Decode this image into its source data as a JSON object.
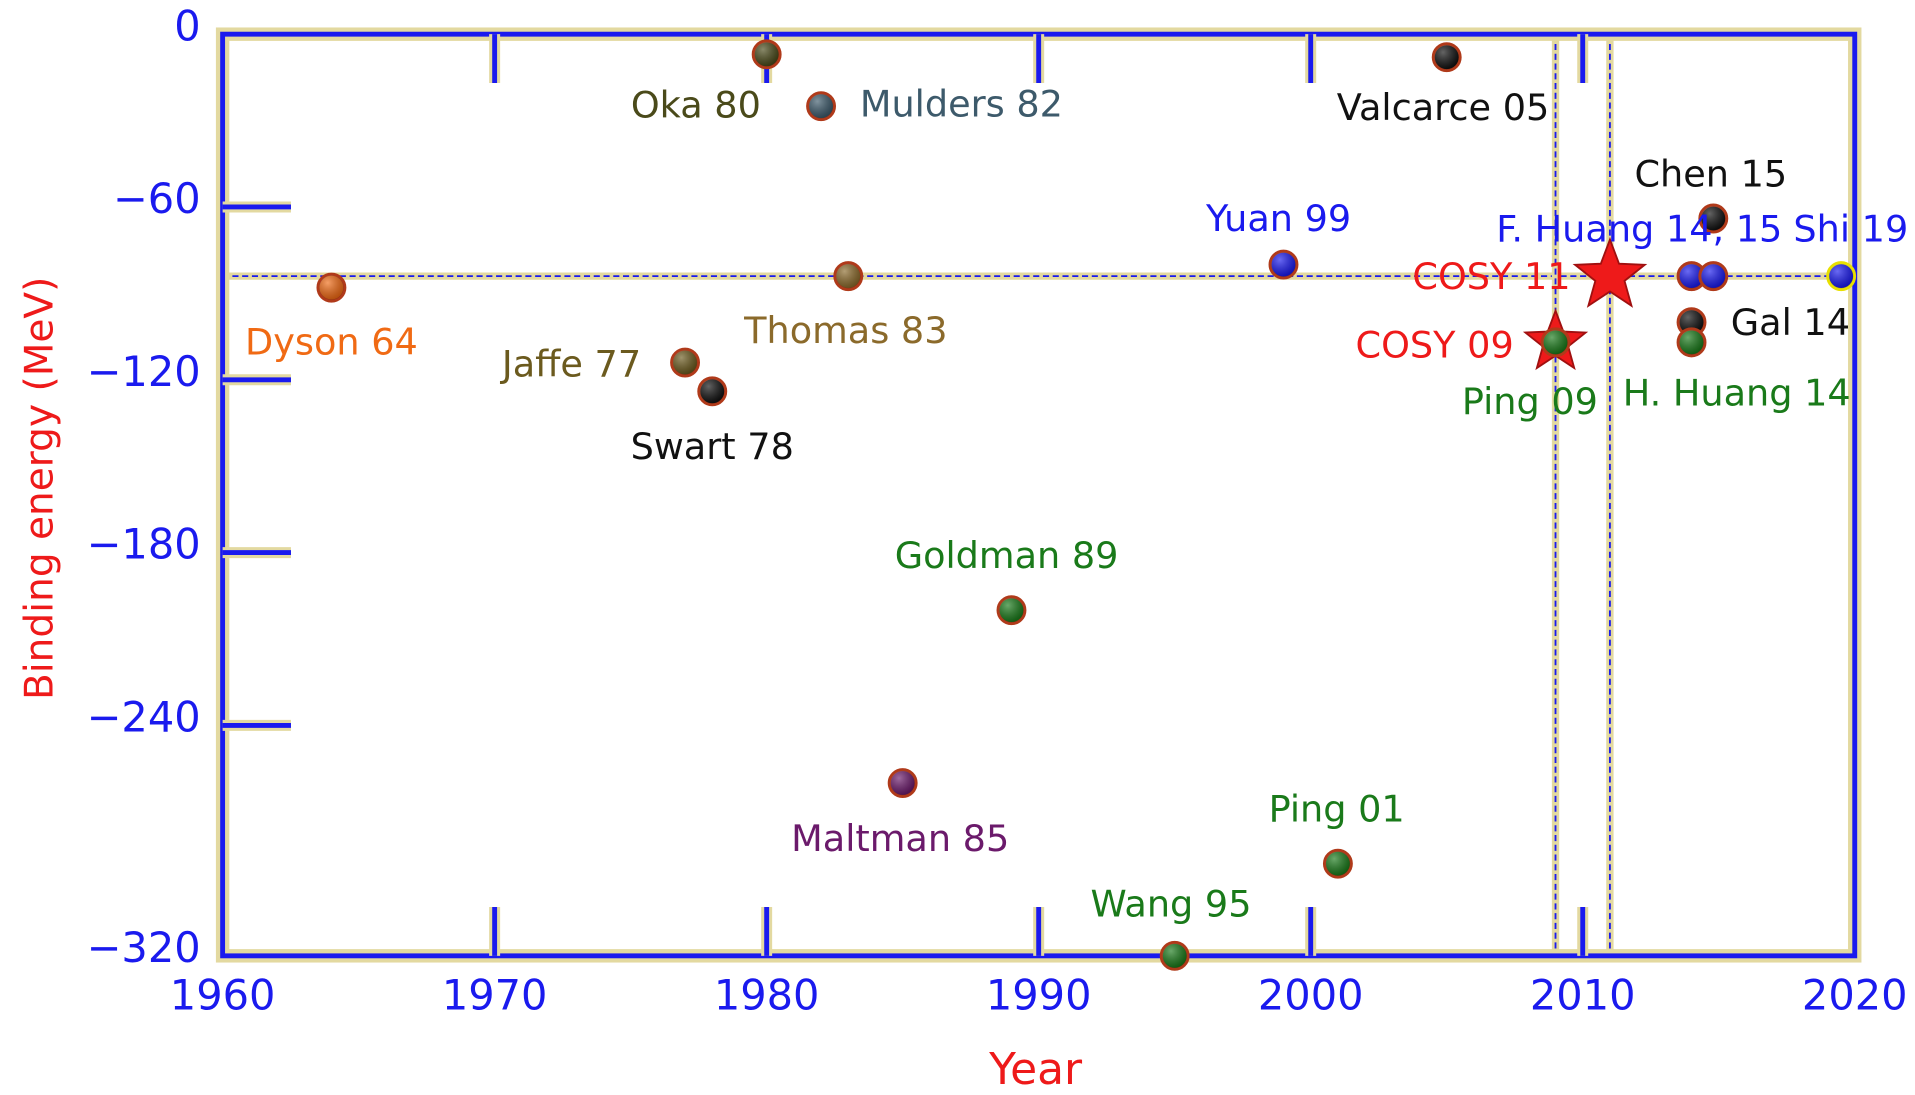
{
  "chart_data": {
    "type": "scatter",
    "xlabel": "Year",
    "ylabel": "Binding energy (MeV)",
    "xlim": [
      1960,
      2020
    ],
    "ylim": [
      -320,
      0
    ],
    "xticks": [
      1960,
      1970,
      1980,
      1990,
      2000,
      2010,
      2020
    ],
    "yticks": [
      0,
      {
        "value": -60,
        "label": "−60"
      },
      {
        "value": -120,
        "label": "−120"
      },
      {
        "value": -180,
        "label": "−180"
      },
      {
        "value": -240,
        "label": "−240"
      },
      {
        "value": -320,
        "label": "−320"
      }
    ],
    "axis_color": "#1a1aee",
    "edgecolor": "#b03a1a",
    "reference_lines": {
      "x": [
        2009,
        2011
      ],
      "y": [
        -84
      ],
      "color": "#1a1aee"
    },
    "series": [
      {
        "name": "Oka 80",
        "color": "#4a4a1a",
        "marker": "circle",
        "x": [
          1980.0
        ],
        "values": [
          -7
        ]
      },
      {
        "name": "Mulders 82",
        "color": "#3d5a6b",
        "marker": "circle",
        "x": [
          1982.0
        ],
        "values": [
          -25
        ]
      },
      {
        "name": "Valcarce 05",
        "color": "#111111",
        "marker": "circle",
        "x": [
          2005.0
        ],
        "values": [
          -8
        ]
      },
      {
        "name": "Dyson 64",
        "color": "#f06a14",
        "marker": "circle",
        "x": [
          1964.0
        ],
        "values": [
          -88
        ]
      },
      {
        "name": "Thomas 83",
        "color": "#8b6a2b",
        "marker": "circle",
        "x": [
          1983.0
        ],
        "values": [
          -84
        ]
      },
      {
        "name": "Jaffe 77",
        "color": "#6b5a1e",
        "marker": "circle",
        "x": [
          1977.0
        ],
        "values": [
          -114
        ]
      },
      {
        "name": "Swart 78",
        "color": "#111111",
        "marker": "circle",
        "x": [
          1978.0
        ],
        "values": [
          -124
        ]
      },
      {
        "name": "Yuan 99",
        "color": "#1a1aee",
        "marker": "circle",
        "x": [
          1999.0
        ],
        "values": [
          -80
        ]
      },
      {
        "name": "Goldman 89",
        "color": "#1a7a1a",
        "marker": "circle",
        "x": [
          1989.0
        ],
        "values": [
          -200
        ]
      },
      {
        "name": "Maltman 85",
        "color": "#6b1a6b",
        "marker": "circle",
        "x": [
          1985.0
        ],
        "values": [
          -260
        ]
      },
      {
        "name": "Ping 01",
        "color": "#1a7a1a",
        "marker": "circle",
        "x": [
          2001.0
        ],
        "values": [
          -288
        ]
      },
      {
        "name": "Wang 95",
        "color": "#1a7a1a",
        "marker": "circle",
        "x": [
          1995.0
        ],
        "values": [
          -320
        ]
      },
      {
        "name": "Chen 15",
        "color": "#111111",
        "marker": "circle",
        "x": [
          2014.8
        ],
        "values": [
          -64
        ]
      },
      {
        "name": "F. Huang 14, 15",
        "color": "#1a1aee",
        "marker": "circle",
        "x": [
          2014.0,
          2014.8
        ],
        "values": [
          -84,
          -84
        ]
      },
      {
        "name": "Shi 19",
        "color": "#1a1aee",
        "marker": "circle",
        "edgecolor": "#e8e000",
        "x": [
          2019.5
        ],
        "values": [
          -84
        ]
      },
      {
        "name": "Gal 14",
        "color": "#111111",
        "marker": "circle",
        "x": [
          2014.0
        ],
        "values": [
          -100
        ]
      },
      {
        "name": "H. Huang 14",
        "color": "#1a7a1a",
        "marker": "circle",
        "x": [
          2014.0
        ],
        "values": [
          -107
        ]
      },
      {
        "name": "COSY 11",
        "color": "#ee1a1a",
        "marker": "star",
        "x": [
          2011.0
        ],
        "values": [
          -84
        ]
      },
      {
        "name": "COSY 09",
        "color": "#ee1a1a",
        "marker": "star",
        "x": [
          2009.0
        ],
        "values": [
          -107
        ]
      },
      {
        "name": "Ping 09",
        "color": "#1a7a1a",
        "marker": "circle",
        "x": [
          2009.0
        ],
        "values": [
          -107
        ]
      }
    ]
  }
}
